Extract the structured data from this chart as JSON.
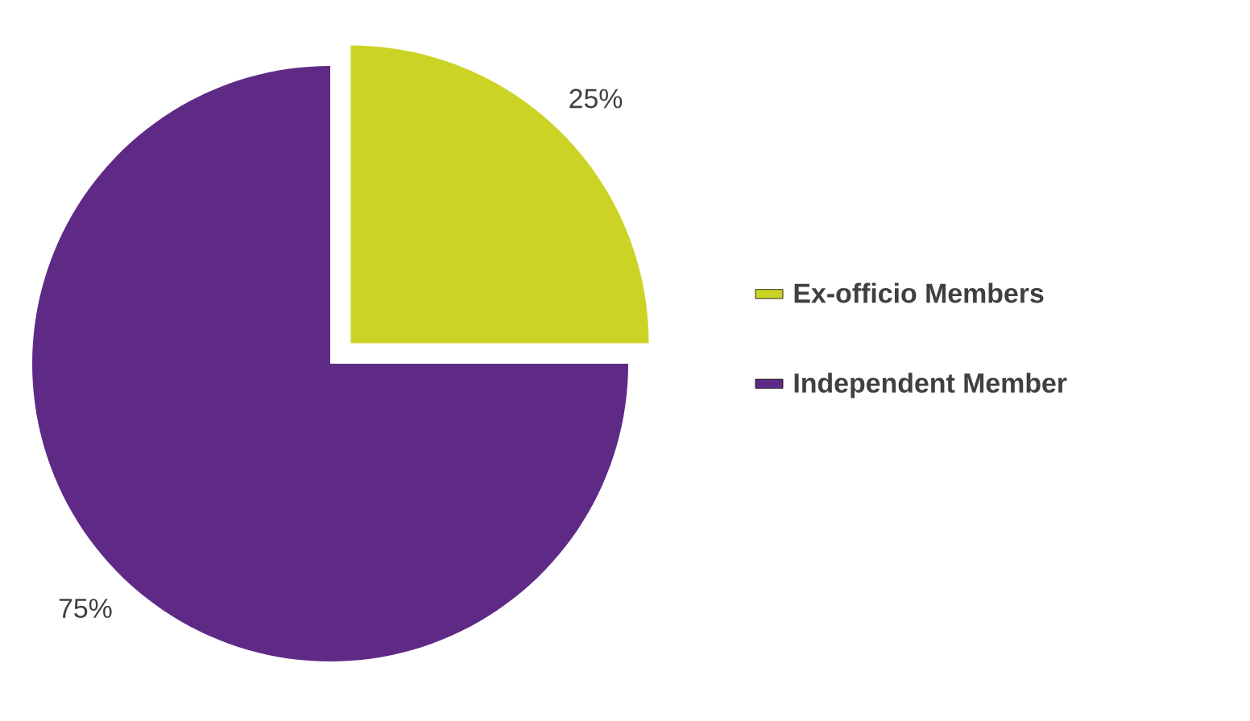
{
  "chart_data": {
    "type": "pie",
    "categories": [
      "Ex-officio Members",
      "Independent Member"
    ],
    "values": [
      25,
      75
    ],
    "colors": [
      "#cbd324",
      "#5f2a86"
    ],
    "value_labels": [
      "25%",
      "75%"
    ],
    "legend": "right"
  }
}
